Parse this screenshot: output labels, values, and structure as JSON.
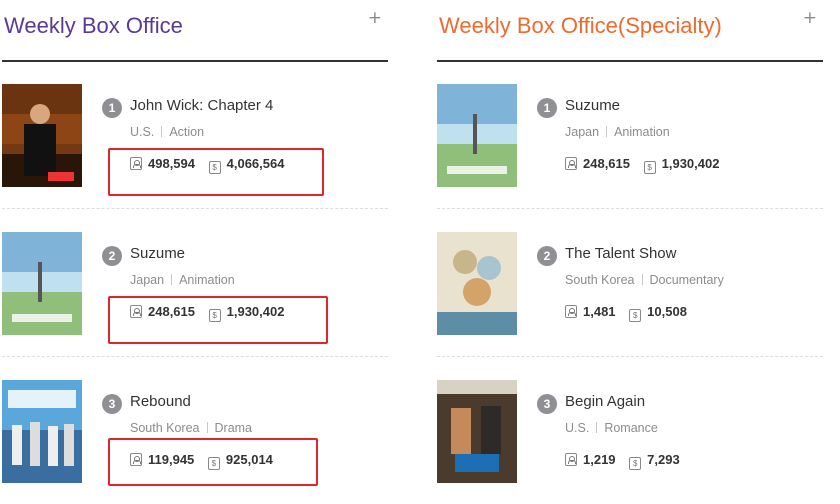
{
  "boxoffice": {
    "title": "Weekly Box Office",
    "title_color": "#5a3a94",
    "more_label": "+",
    "movies": [
      {
        "rank": "1",
        "title": "John Wick: Chapter 4",
        "country": "U.S.",
        "genre": "Action",
        "audience": "498,594",
        "revenue": "4,066,564",
        "highlighted": true
      },
      {
        "rank": "2",
        "title": "Suzume",
        "country": "Japan",
        "genre": "Animation",
        "audience": "248,615",
        "revenue": "1,930,402",
        "highlighted": true
      },
      {
        "rank": "3",
        "title": "Rebound",
        "country": "South Korea",
        "genre": "Drama",
        "audience": "119,945",
        "revenue": "925,014",
        "highlighted": true
      }
    ]
  },
  "specialty": {
    "title": "Weekly Box Office(Specialty)",
    "title_color": "#ee6a2f",
    "more_label": "+",
    "movies": [
      {
        "rank": "1",
        "title": "Suzume",
        "country": "Japan",
        "genre": "Animation",
        "audience": "248,615",
        "revenue": "1,930,402"
      },
      {
        "rank": "2",
        "title": "The Talent Show",
        "country": "South Korea",
        "genre": "Documentary",
        "audience": "1,481",
        "revenue": "10,508"
      },
      {
        "rank": "3",
        "title": "Begin Again",
        "country": "U.S.",
        "genre": "Romance",
        "audience": "1,219",
        "revenue": "7,293"
      }
    ]
  },
  "highlight_color": "#e0262b",
  "icons": {
    "audience": "person-icon",
    "revenue": "money-icon"
  }
}
